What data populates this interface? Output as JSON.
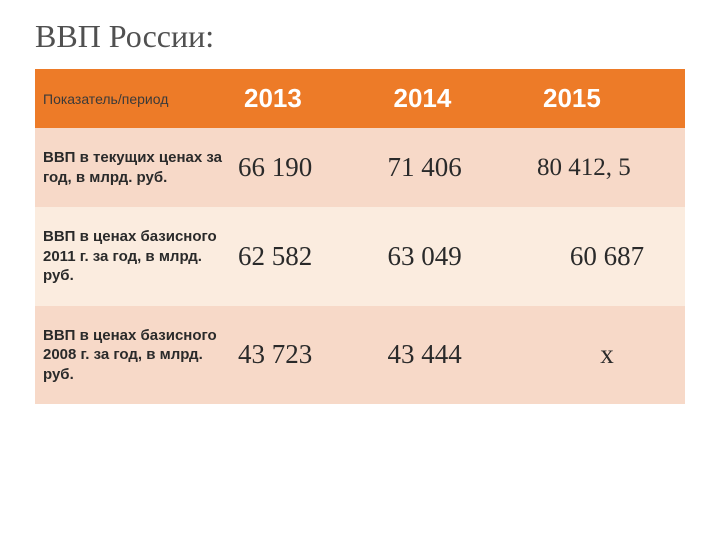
{
  "title": "ВВП России:",
  "table": {
    "header": {
      "label": "Показатель/период",
      "col1": "2013",
      "col2": "2014",
      "col3": "2015"
    },
    "rows": [
      {
        "label": "ВВП в текущих ценах за год, в млрд. руб.",
        "v1": "66 190",
        "v2": "71 406",
        "v3": "80 412, 5"
      },
      {
        "label": "ВВП в ценах базисного 2011 г. за год, в млрд. руб.",
        "v1": "62 582",
        "v2": "63 049",
        "v3": "60 687"
      },
      {
        "label": "ВВП в ценах базисного 2008 г. за год, в млрд. руб.",
        "v1": "43 723",
        "v2": "43 444",
        "v3": "х"
      }
    ]
  },
  "colors": {
    "header_bg": "#ed7b28",
    "row_odd_bg": "#f7d9c8",
    "row_even_bg": "#fbecdf",
    "title_color": "#505050",
    "text_color": "#2a2a2a"
  }
}
